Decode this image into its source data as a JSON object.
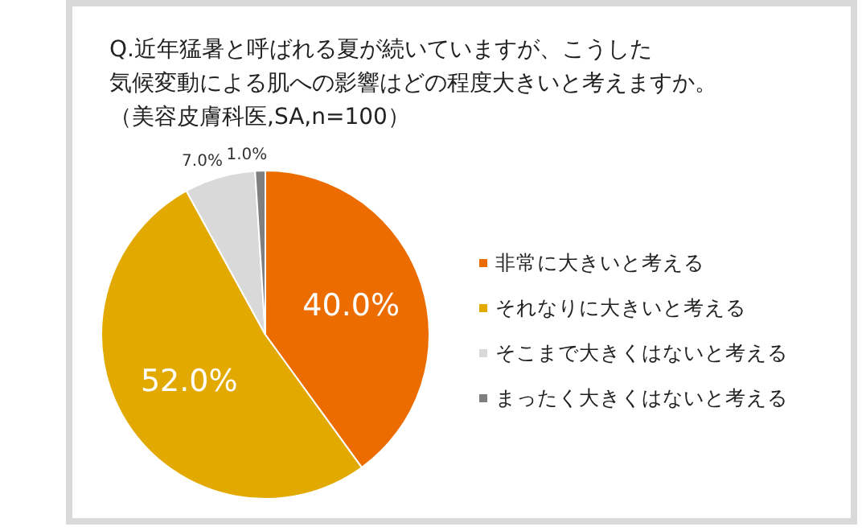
{
  "chart_data": {
    "type": "pie",
    "title": "Q.近年猛暑と呼ばれる夏が続いていますが、こうした気候変動による肌への影響はどの程度大きいと考えますか。",
    "subtitle": "（美容皮膚科医,SA,n=100）",
    "categories": [
      "非常に大きいと考える",
      "それなりに大きいと考える",
      "そこまで大きくはないと考える",
      "まったく大きくはないと考える"
    ],
    "values": [
      40,
      52,
      7,
      1
    ],
    "value_labels": [
      "40.0%",
      "52.0%",
      "7.0%",
      "1.0%"
    ],
    "colors": [
      "#ec6c00",
      "#e2a900",
      "#d9d9d9",
      "#7f7f7f"
    ],
    "legend": "right"
  }
}
